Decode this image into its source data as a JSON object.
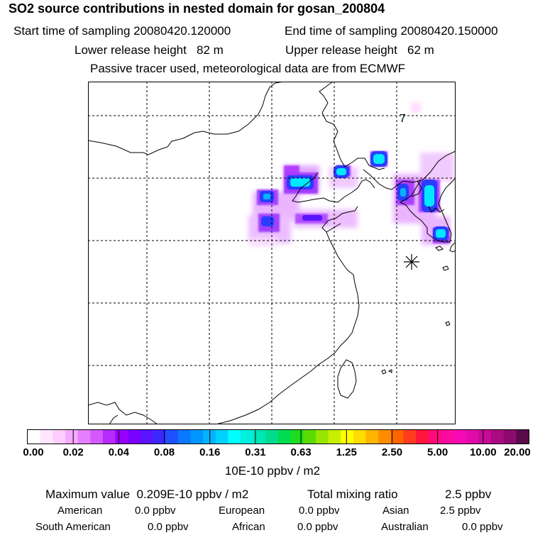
{
  "header": {
    "title": "SO2 source contributions in nested domain for gosan_200804",
    "start_time": "Start time of sampling 20080420.120000",
    "end_time": "End time of sampling 20080420.150000",
    "lower_release": "Lower release height   82 m",
    "upper_release": "Upper release height   62 m",
    "info": "Passive tracer used, meteorological data are from ECMWF"
  },
  "map": {
    "marker_label": "7",
    "receptor_symbol": "asterisk-icon"
  },
  "colorbar": {
    "colors": [
      "#ffffff",
      "#ffe6ff",
      "#ffccff",
      "#f5a9ff",
      "#e67fff",
      "#d45aff",
      "#b829ff",
      "#9900ff",
      "#7a00ff",
      "#5a14ff",
      "#3c28ff",
      "#1e50ff",
      "#0a78ff",
      "#0096ff",
      "#00b4ff",
      "#00d2ff",
      "#00ffff",
      "#00f0dc",
      "#00e6b4",
      "#00dc8c",
      "#00dc50",
      "#1edc1e",
      "#5adc00",
      "#96e600",
      "#c8f000",
      "#ffff00",
      "#ffdc00",
      "#ffb400",
      "#ff8c00",
      "#ff6400",
      "#ff3c1e",
      "#ff143c",
      "#ff0a78",
      "#ff0aa0",
      "#f50ab4",
      "#e10aaa",
      "#c80a96",
      "#aa0a82",
      "#8c0a6e",
      "#5a0a4b"
    ],
    "labels": [
      "0.00",
      "0.02",
      "0.04",
      "0.08",
      "0.16",
      "0.31",
      "0.63",
      "1.25",
      "2.50",
      "5.00",
      "10.00",
      "20.00"
    ],
    "units": "10E-10 ppbv / m2"
  },
  "summary": {
    "max_value": "Maximum value  0.209E-10 ppbv / m2",
    "total_mixing": "Total mixing ratio",
    "total_value": "2.5 ppbv",
    "american_label": "American",
    "american_value": "0.0 ppbv",
    "european_label": "European",
    "european_value": "0.0 ppbv",
    "asian_label": "Asian",
    "asian_value": "2.5 ppbv",
    "south_american_label": "South American",
    "south_american_value": "0.0 ppbv",
    "african_label": "African",
    "african_value": "0.0 ppbv",
    "australian_label": "Australian",
    "australian_value": "0.0 ppbv"
  }
}
